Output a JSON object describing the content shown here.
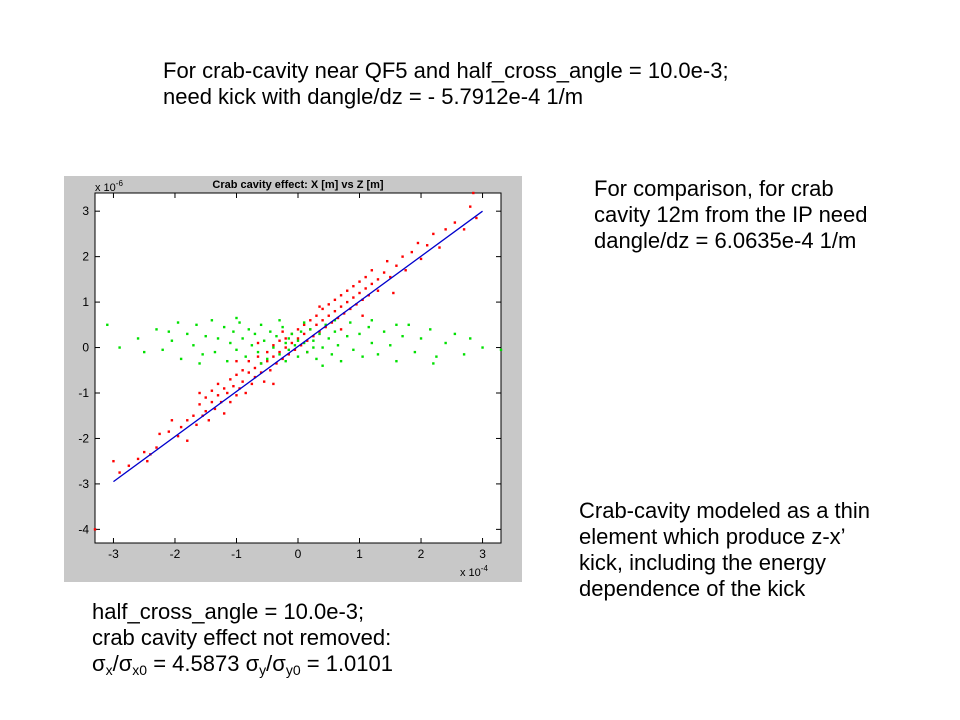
{
  "slide": {
    "title_line1": "For crab-cavity near QF5  and half_cross_angle = 10.0e-3;",
    "title_line2": "need kick with  dangle/dz  =  - 5.7912e-4   1/m",
    "comparison_line1": "For comparison, for crab",
    "comparison_line2": "cavity 12m from the IP need",
    "comparison_line3": "dangle/dz  = 6.0635e-4 1/m",
    "model_line1": "Crab-cavity modeled as a thin",
    "model_line2": "element which produce z-x’",
    "model_line3": "kick, including the energy",
    "model_line4": "dependence of the kick",
    "bottom_line1": "half_cross_angle = 10.0e-3;",
    "bottom_line2": "crab cavity effect not removed:",
    "sigma": "σ",
    "sub_x": "x",
    "sub_x0": "x0",
    "sub_y": "y",
    "sub_y0": "y0",
    "slash": "/",
    "ratio_x_value": " = 4.5873  ",
    "ratio_y_value": " = 1.0101"
  },
  "chart_data": {
    "type": "scatter",
    "title": "Crab cavity effect: X [m] vs Z [m]",
    "x_multiplier": "x 10",
    "x_exponent": "-4",
    "y_multiplier": "x 10",
    "y_exponent": "-6",
    "xlim": [
      -3.3,
      3.3
    ],
    "ylim": [
      -4.3,
      3.4
    ],
    "xticks": [
      -3,
      -2,
      -1,
      0,
      1,
      2,
      3
    ],
    "yticks": [
      -4,
      -3,
      -2,
      -1,
      0,
      1,
      2,
      3
    ],
    "grid": false,
    "colors": {
      "frame_background": "#c8c8c8",
      "axes_background": "#ffffff",
      "red_series": "#ff0000",
      "green_series": "#00e000",
      "fit_line": "#0000cc"
    },
    "fit_line": {
      "x": [
        -3.0,
        3.0
      ],
      "y": [
        -2.95,
        3.0
      ]
    },
    "series": [
      {
        "color": "#ff0000",
        "points": [
          [
            -3.0,
            -2.5
          ],
          [
            -2.9,
            -2.75
          ],
          [
            -2.75,
            -2.6
          ],
          [
            -2.6,
            -2.45
          ],
          [
            -2.5,
            -2.3
          ],
          [
            -2.45,
            -2.5
          ],
          [
            -2.4,
            -2.35
          ],
          [
            -2.3,
            -2.2
          ],
          [
            -2.25,
            -1.9
          ],
          [
            -2.1,
            -1.85
          ],
          [
            -2.05,
            -1.6
          ],
          [
            -1.95,
            -1.95
          ],
          [
            -1.9,
            -1.75
          ],
          [
            -1.8,
            -1.6
          ],
          [
            -1.8,
            -2.05
          ],
          [
            -1.7,
            -1.5
          ],
          [
            -1.65,
            -1.7
          ],
          [
            -1.6,
            -1.25
          ],
          [
            -1.55,
            -1.5
          ],
          [
            -1.5,
            -1.4
          ],
          [
            -1.5,
            -1.1
          ],
          [
            -1.45,
            -1.6
          ],
          [
            -1.4,
            -1.2
          ],
          [
            -1.4,
            -0.95
          ],
          [
            -1.35,
            -1.35
          ],
          [
            -1.3,
            -1.05
          ],
          [
            -1.3,
            -0.8
          ],
          [
            -1.25,
            -1.2
          ],
          [
            -1.2,
            -0.9
          ],
          [
            -1.2,
            -1.45
          ],
          [
            -1.15,
            -1.0
          ],
          [
            -1.1,
            -0.7
          ],
          [
            -1.1,
            -1.2
          ],
          [
            -1.05,
            -0.85
          ],
          [
            -1.0,
            -0.6
          ],
          [
            -1.0,
            -1.05
          ],
          [
            -0.95,
            -0.9
          ],
          [
            -0.9,
            -0.5
          ],
          [
            -0.9,
            -0.75
          ],
          [
            -0.85,
            -1.0
          ],
          [
            -0.8,
            -0.55
          ],
          [
            -0.8,
            -0.3
          ],
          [
            -0.75,
            -0.8
          ],
          [
            -0.7,
            -0.45
          ],
          [
            -0.7,
            -0.65
          ],
          [
            -0.65,
            -0.2
          ],
          [
            -0.6,
            -0.55
          ],
          [
            -0.6,
            -0.35
          ],
          [
            -0.55,
            -0.75
          ],
          [
            -0.5,
            -0.3
          ],
          [
            -0.5,
            -0.1
          ],
          [
            -0.45,
            -0.5
          ],
          [
            -0.4,
            -0.2
          ],
          [
            -0.4,
            0.05
          ],
          [
            -0.35,
            -0.35
          ],
          [
            -0.3,
            -0.1
          ],
          [
            -0.3,
            0.15
          ],
          [
            -0.25,
            -0.25
          ],
          [
            -0.2,
            0.0
          ],
          [
            -0.2,
            0.2
          ],
          [
            -0.15,
            -0.15
          ],
          [
            -0.1,
            0.1
          ],
          [
            -0.1,
            0.3
          ],
          [
            -0.05,
            -0.05
          ],
          [
            0.0,
            0.2
          ],
          [
            0.0,
            0.4
          ],
          [
            0.05,
            0.05
          ],
          [
            0.1,
            0.3
          ],
          [
            0.1,
            0.5
          ],
          [
            0.15,
            0.15
          ],
          [
            0.2,
            0.4
          ],
          [
            0.2,
            0.6
          ],
          [
            0.25,
            0.25
          ],
          [
            0.3,
            0.5
          ],
          [
            0.3,
            0.7
          ],
          [
            0.35,
            0.35
          ],
          [
            0.4,
            0.6
          ],
          [
            0.4,
            0.85
          ],
          [
            0.45,
            0.45
          ],
          [
            0.5,
            0.7
          ],
          [
            0.5,
            0.95
          ],
          [
            0.55,
            0.55
          ],
          [
            0.6,
            0.8
          ],
          [
            0.6,
            1.05
          ],
          [
            0.65,
            0.65
          ],
          [
            0.7,
            0.9
          ],
          [
            0.7,
            1.15
          ],
          [
            0.75,
            0.75
          ],
          [
            0.8,
            1.0
          ],
          [
            0.8,
            1.25
          ],
          [
            0.85,
            0.85
          ],
          [
            0.9,
            1.1
          ],
          [
            0.9,
            1.35
          ],
          [
            0.95,
            0.95
          ],
          [
            1.0,
            1.2
          ],
          [
            1.0,
            1.45
          ],
          [
            1.05,
            1.05
          ],
          [
            1.1,
            1.3
          ],
          [
            1.1,
            1.55
          ],
          [
            1.15,
            1.15
          ],
          [
            1.2,
            1.4
          ],
          [
            1.2,
            1.7
          ],
          [
            1.3,
            1.5
          ],
          [
            1.3,
            1.25
          ],
          [
            1.4,
            1.65
          ],
          [
            1.45,
            1.9
          ],
          [
            1.5,
            1.55
          ],
          [
            1.6,
            1.8
          ],
          [
            1.7,
            2.0
          ],
          [
            1.75,
            1.7
          ],
          [
            1.85,
            2.1
          ],
          [
            1.95,
            2.3
          ],
          [
            2.0,
            1.95
          ],
          [
            2.1,
            2.25
          ],
          [
            2.2,
            2.5
          ],
          [
            2.3,
            2.2
          ],
          [
            2.4,
            2.6
          ],
          [
            2.55,
            2.75
          ],
          [
            2.7,
            2.6
          ],
          [
            2.8,
            3.1
          ],
          [
            2.85,
            3.4
          ],
          [
            2.9,
            2.85
          ],
          [
            -3.3,
            -4.0
          ],
          [
            -0.25,
            0.35
          ],
          [
            0.15,
            -0.1
          ],
          [
            -0.65,
            0.1
          ],
          [
            0.7,
            0.4
          ],
          [
            -1.0,
            -0.3
          ],
          [
            1.05,
            0.7
          ],
          [
            -1.6,
            -1.0
          ],
          [
            1.55,
            1.2
          ],
          [
            0.35,
            0.9
          ],
          [
            -0.4,
            -0.8
          ]
        ]
      },
      {
        "color": "#00e000",
        "points": [
          [
            -3.1,
            0.5
          ],
          [
            -2.9,
            0.0
          ],
          [
            -2.6,
            0.2
          ],
          [
            -2.5,
            -0.1
          ],
          [
            -2.3,
            0.4
          ],
          [
            -2.2,
            -0.05
          ],
          [
            -2.05,
            0.15
          ],
          [
            -1.95,
            0.55
          ],
          [
            -1.9,
            -0.25
          ],
          [
            -1.8,
            0.3
          ],
          [
            -1.7,
            0.05
          ],
          [
            -1.65,
            0.5
          ],
          [
            -1.55,
            -0.15
          ],
          [
            -1.5,
            0.25
          ],
          [
            -1.4,
            0.6
          ],
          [
            -1.35,
            -0.1
          ],
          [
            -1.3,
            0.2
          ],
          [
            -1.2,
            0.45
          ],
          [
            -1.15,
            -0.3
          ],
          [
            -1.1,
            0.1
          ],
          [
            -1.05,
            0.35
          ],
          [
            -1.0,
            -0.05
          ],
          [
            -0.95,
            0.55
          ],
          [
            -0.9,
            0.2
          ],
          [
            -0.85,
            -0.2
          ],
          [
            -0.8,
            0.4
          ],
          [
            -0.75,
            0.05
          ],
          [
            -0.7,
            0.3
          ],
          [
            -0.65,
            -0.1
          ],
          [
            -0.6,
            0.5
          ],
          [
            -0.55,
            0.15
          ],
          [
            -0.5,
            -0.25
          ],
          [
            -0.45,
            0.35
          ],
          [
            -0.4,
            0.0
          ],
          [
            -0.35,
            0.25
          ],
          [
            -0.3,
            -0.15
          ],
          [
            -0.25,
            0.45
          ],
          [
            -0.2,
            0.1
          ],
          [
            -0.15,
            -0.05
          ],
          [
            -0.1,
            0.3
          ],
          [
            -0.05,
            0.05
          ],
          [
            0.0,
            -0.2
          ],
          [
            0.05,
            0.35
          ],
          [
            0.1,
            0.1
          ],
          [
            0.15,
            -0.1
          ],
          [
            0.2,
            0.4
          ],
          [
            0.25,
            0.15
          ],
          [
            0.3,
            -0.25
          ],
          [
            0.35,
            0.3
          ],
          [
            0.4,
            0.0
          ],
          [
            0.45,
            0.5
          ],
          [
            0.5,
            0.2
          ],
          [
            0.55,
            -0.15
          ],
          [
            0.6,
            0.35
          ],
          [
            0.65,
            0.05
          ],
          [
            0.7,
            -0.3
          ],
          [
            0.8,
            0.25
          ],
          [
            0.85,
            0.55
          ],
          [
            0.9,
            -0.05
          ],
          [
            1.0,
            0.3
          ],
          [
            1.05,
            -0.2
          ],
          [
            1.15,
            0.45
          ],
          [
            1.2,
            0.1
          ],
          [
            1.3,
            -0.15
          ],
          [
            1.4,
            0.35
          ],
          [
            1.5,
            0.05
          ],
          [
            1.6,
            -0.3
          ],
          [
            1.7,
            0.25
          ],
          [
            1.8,
            0.5
          ],
          [
            1.9,
            -0.1
          ],
          [
            2.0,
            0.2
          ],
          [
            2.15,
            0.4
          ],
          [
            2.25,
            -0.2
          ],
          [
            2.4,
            0.1
          ],
          [
            2.55,
            0.3
          ],
          [
            2.7,
            -0.15
          ],
          [
            2.8,
            0.2
          ],
          [
            3.0,
            0.0
          ],
          [
            3.3,
            -0.05
          ],
          [
            -0.2,
            -0.3
          ],
          [
            0.1,
            0.55
          ],
          [
            -0.6,
            -0.35
          ],
          [
            0.4,
            -0.4
          ],
          [
            -1.0,
            0.65
          ],
          [
            1.2,
            0.6
          ],
          [
            -1.6,
            -0.35
          ],
          [
            1.6,
            0.5
          ],
          [
            -2.1,
            0.35
          ],
          [
            2.2,
            -0.35
          ],
          [
            0.6,
            0.6
          ],
          [
            -0.3,
            0.6
          ],
          [
            0.0,
            0.15
          ],
          [
            0.25,
            0.0
          ],
          [
            -0.15,
            0.2
          ]
        ]
      }
    ]
  }
}
